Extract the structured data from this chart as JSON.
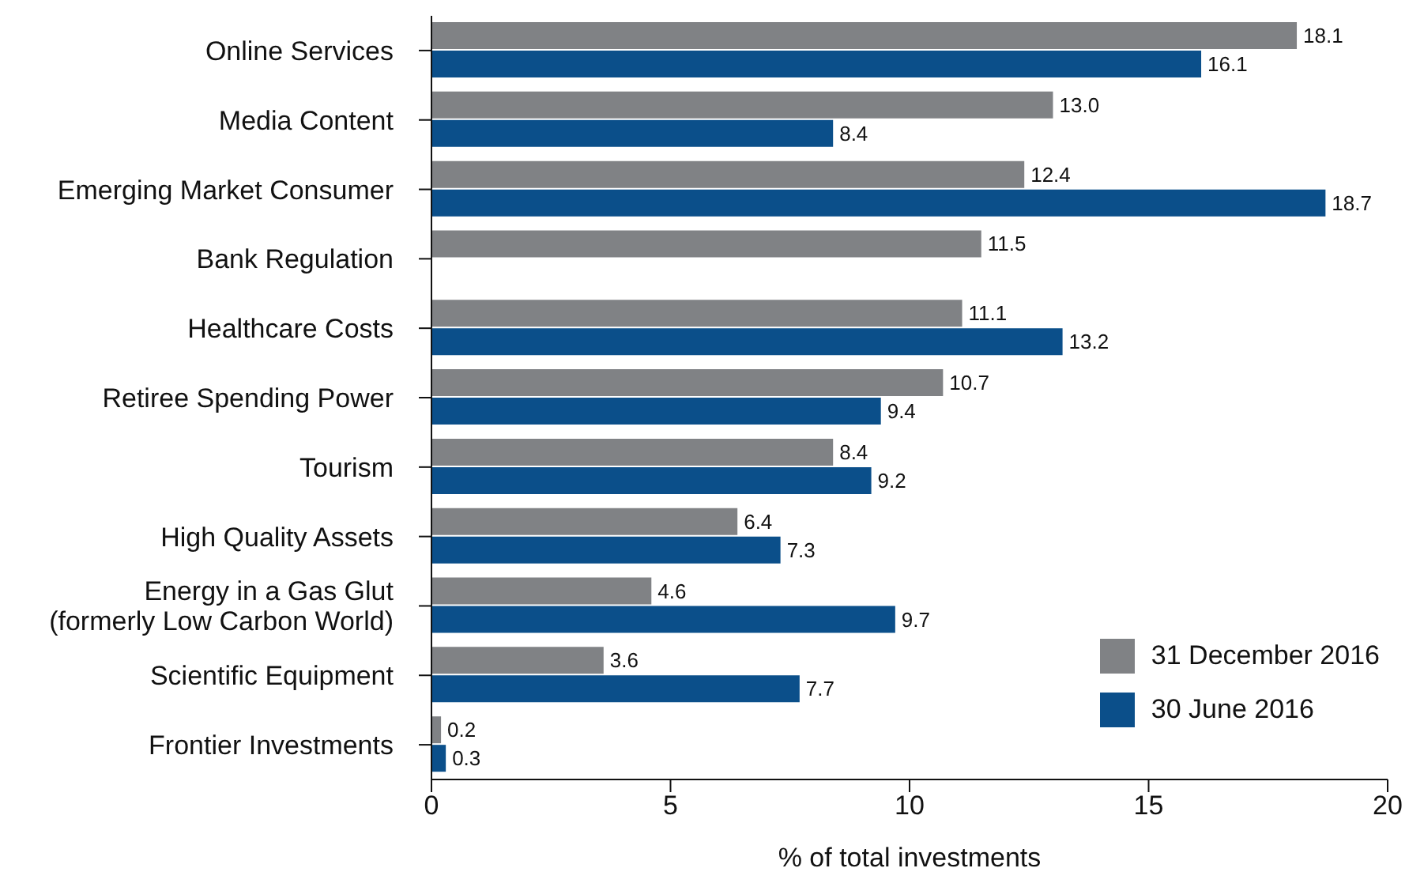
{
  "chart_data": {
    "type": "bar",
    "orientation": "horizontal",
    "xlabel": "% of total investments",
    "categories": [
      "Online Services",
      "Media Content",
      "Emerging Market Consumer",
      "Bank Regulation",
      "Healthcare Costs",
      "Retiree Spending Power",
      "Tourism",
      "High Quality Assets",
      "Energy in a Gas Glut\n(formerly Low Carbon World)",
      "Scientific Equipment",
      "Frontier Investments"
    ],
    "series": [
      {
        "name": "31 December 2016",
        "color": "#808285",
        "values": [
          18.1,
          13.0,
          12.4,
          11.5,
          11.1,
          10.7,
          8.4,
          6.4,
          4.6,
          3.6,
          0.2
        ],
        "value_labels": [
          "18.1",
          "13.0",
          "12.4",
          "11.5",
          "11.1",
          "10.7",
          "8.4",
          "6.4",
          "4.6",
          "3.6",
          "0.2"
        ]
      },
      {
        "name": "30 June 2016",
        "color": "#0b4f8a",
        "values": [
          16.1,
          8.4,
          18.7,
          null,
          13.2,
          9.4,
          9.2,
          7.3,
          9.7,
          7.7,
          0.3
        ],
        "value_labels": [
          "16.1",
          "8.4",
          "18.7",
          null,
          "13.2",
          "9.4",
          "9.2",
          "7.3",
          "9.7",
          "7.7",
          "0.3"
        ]
      }
    ],
    "xlim": [
      0,
      20
    ],
    "xticks": [
      0,
      5,
      10,
      15,
      20
    ],
    "grid": false,
    "legend": "bottom right"
  }
}
